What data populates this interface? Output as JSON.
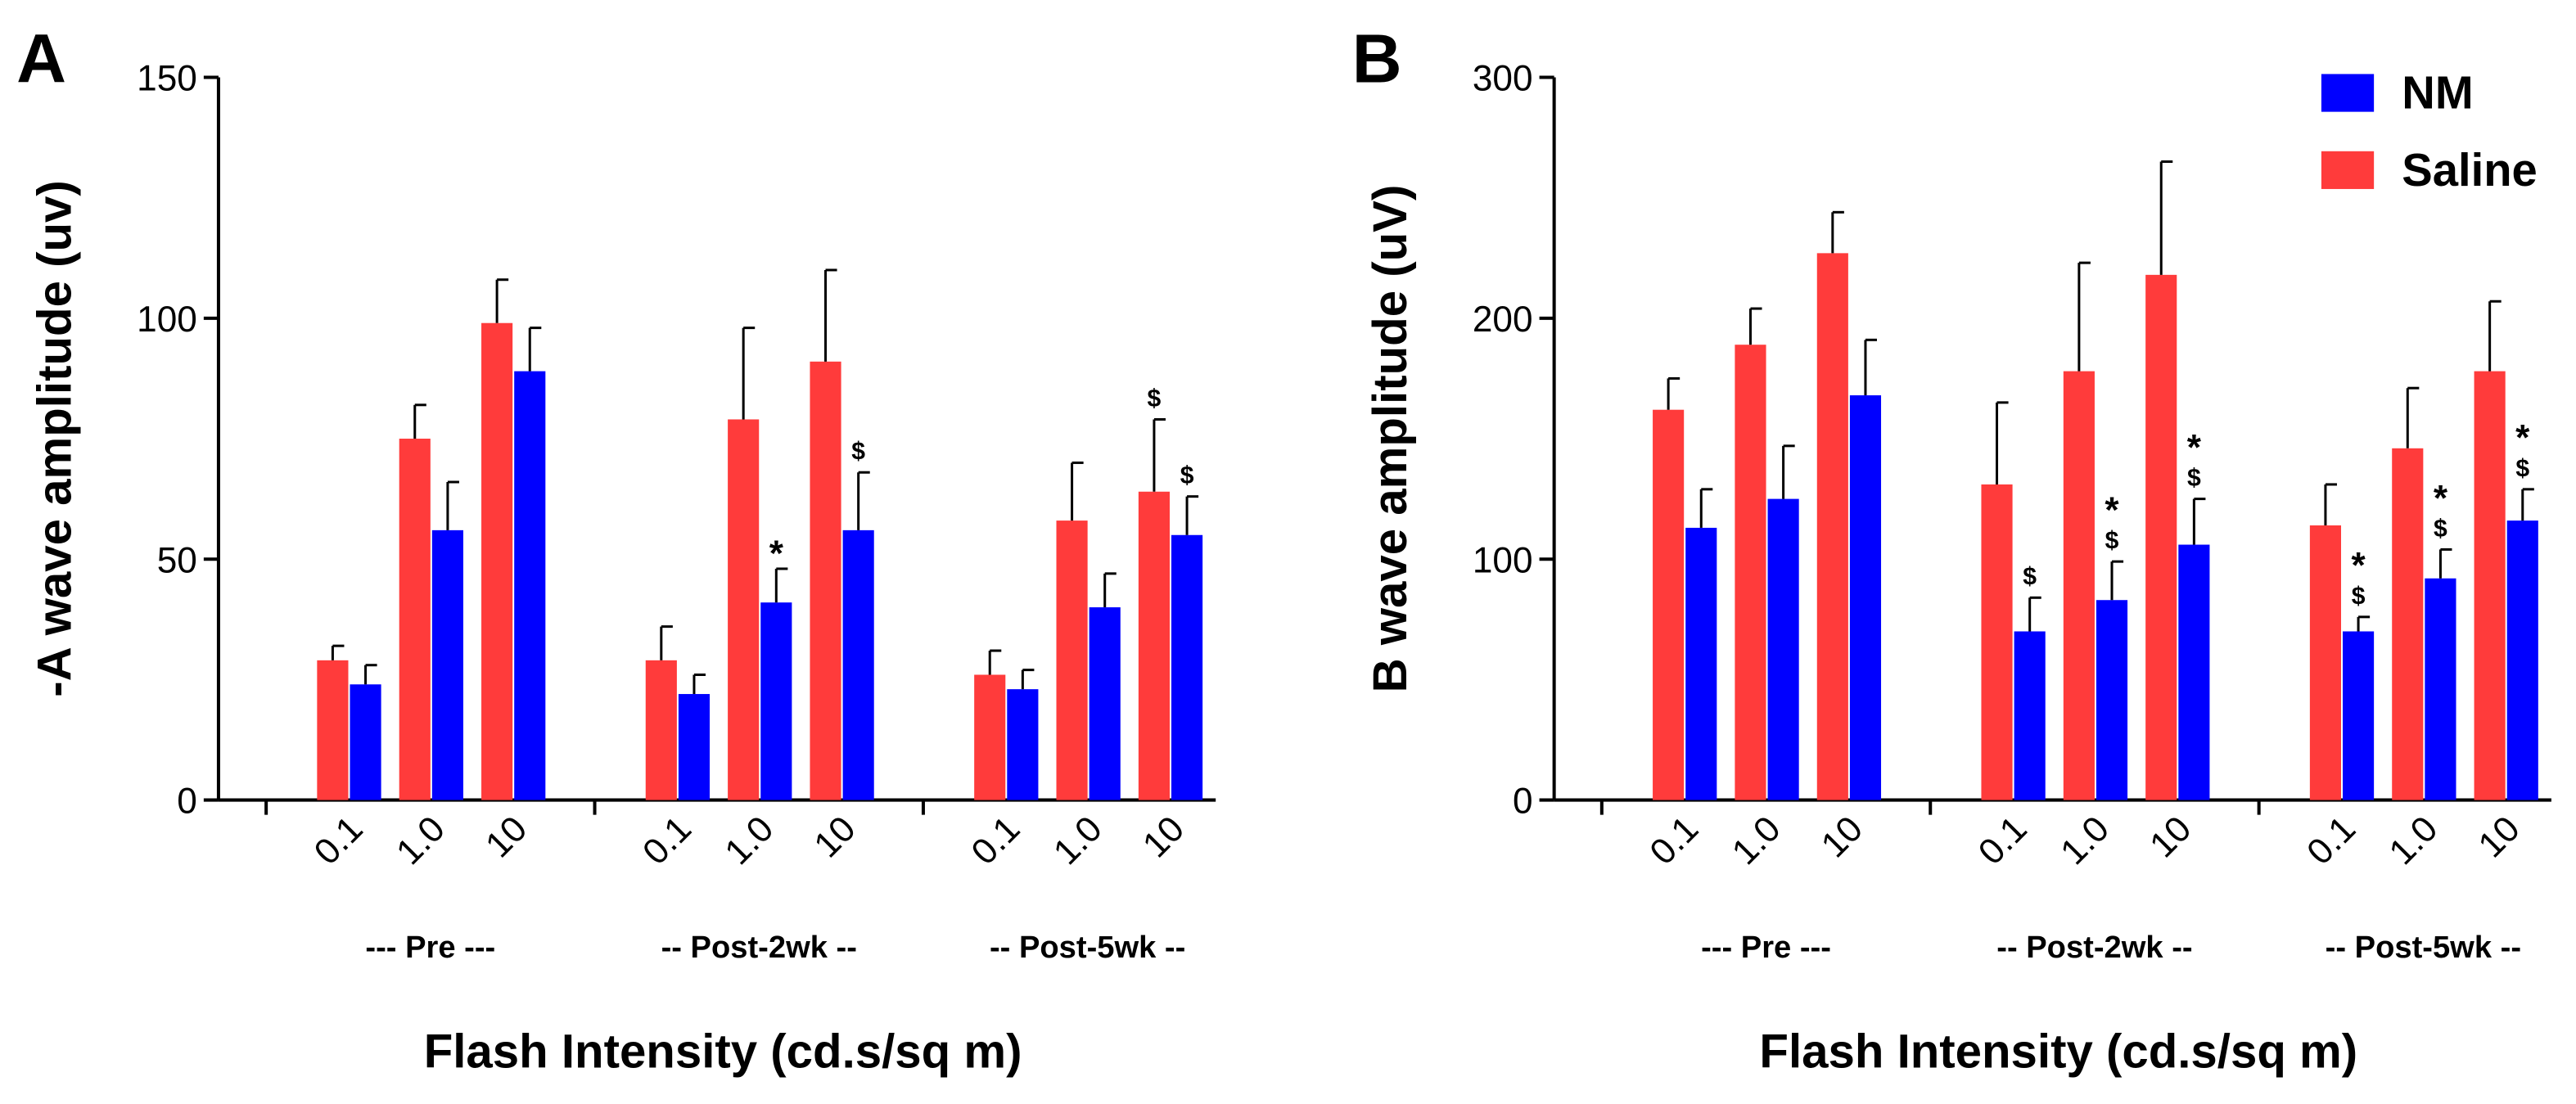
{
  "chart_data": [
    {
      "type": "bar",
      "panel": "A",
      "ylabel": "-A wave amplitude (uv)",
      "xlabel": "Flash Intensity (cd.s/sq m)",
      "categories": [
        "0.1",
        "1.0",
        "10",
        "0.1",
        "1.0",
        "10",
        "0.1",
        "1.0",
        "10"
      ],
      "groups": [
        "--- Pre ---",
        "-- Post-2wk --",
        "-- Post-5wk --"
      ],
      "ylim": [
        0,
        150
      ],
      "yticks": [
        0,
        50,
        100,
        150
      ],
      "series": [
        {
          "color": "#0000ff",
          "values": [
            24,
            56,
            89,
            22,
            41,
            56,
            23,
            40,
            55
          ],
          "errors": [
            4,
            10,
            9,
            4,
            7,
            12,
            4,
            7,
            8
          ],
          "annotations": [
            null,
            null,
            null,
            null,
            [
              "*"
            ],
            [
              "$"
            ],
            null,
            null,
            [
              "$"
            ]
          ]
        },
        {
          "color": "#ff3b3b",
          "values": [
            29,
            75,
            99,
            29,
            79,
            91,
            26,
            58,
            64
          ],
          "errors": [
            3,
            7,
            9,
            7,
            19,
            19,
            5,
            12,
            15
          ],
          "annotations": [
            null,
            null,
            null,
            null,
            null,
            null,
            null,
            null,
            [
              "$"
            ]
          ]
        }
      ]
    },
    {
      "type": "bar",
      "panel": "B",
      "ylabel": "B wave amplitude (uV)",
      "xlabel": "Flash Intensity (cd.s/sq m)",
      "categories": [
        "0.1",
        "1.0",
        "10",
        "0.1",
        "1.0",
        "10",
        "0.1",
        "1.0",
        "10"
      ],
      "groups": [
        "--- Pre ---",
        "-- Post-2wk --",
        "-- Post-5wk --"
      ],
      "ylim": [
        0,
        300
      ],
      "yticks": [
        0,
        100,
        200,
        300
      ],
      "legend": "upper right",
      "series": [
        {
          "name": "NM",
          "color": "#0000ff",
          "values": [
            113,
            125,
            168,
            70,
            83,
            106,
            70,
            92,
            116
          ],
          "errors": [
            16,
            22,
            23,
            14,
            16,
            19,
            6,
            12,
            13
          ],
          "annotations": [
            null,
            null,
            null,
            [
              "$"
            ],
            [
              "*",
              "$"
            ],
            [
              "*",
              "$"
            ],
            [
              "*",
              "$"
            ],
            [
              "*",
              "$"
            ],
            [
              "*",
              "$"
            ]
          ]
        },
        {
          "name": "Saline",
          "color": "#ff3b3b",
          "values": [
            162,
            189,
            227,
            131,
            178,
            218,
            114,
            146,
            178
          ],
          "errors": [
            13,
            15,
            17,
            34,
            45,
            47,
            17,
            25,
            29
          ],
          "annotations": [
            null,
            null,
            null,
            null,
            null,
            null,
            null,
            null,
            null
          ]
        }
      ]
    }
  ]
}
